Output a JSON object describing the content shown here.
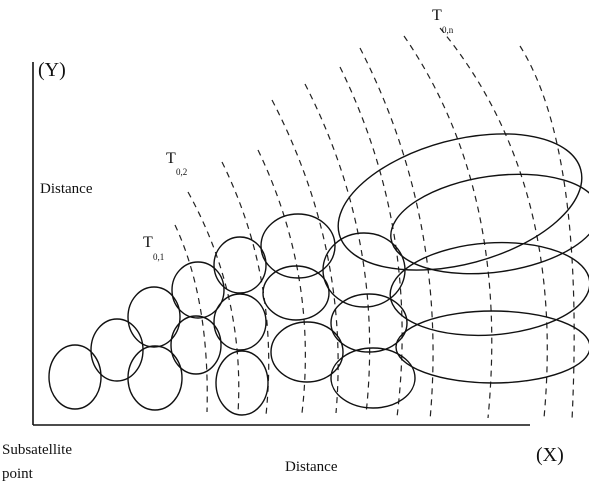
{
  "labels": {
    "y_axis": "(Y)",
    "y_distance": "Distance",
    "x_axis": "(X)",
    "x_distance": "Distance",
    "origin_line1": "Subsatellite",
    "origin_line2": "point",
    "t1_main": "T",
    "t1_sub": "0,1",
    "t2_main": "T",
    "t2_sub": "0,2",
    "tn_main": "T",
    "tn_sub": "0,n"
  }
}
